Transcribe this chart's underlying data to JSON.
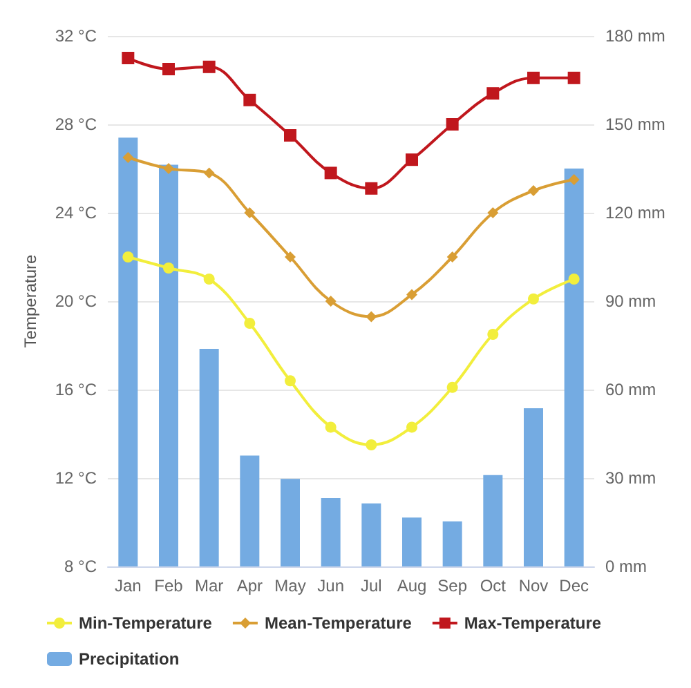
{
  "chart_data": {
    "type": "line",
    "ylabel": "Temperature",
    "categories": [
      "Jan",
      "Feb",
      "Mar",
      "Apr",
      "May",
      "Jun",
      "Jul",
      "Aug",
      "Sep",
      "Oct",
      "Nov",
      "Dec"
    ],
    "ylim": [
      8,
      32
    ],
    "yticks": [
      {
        "value": 8,
        "label": "8 °C"
      },
      {
        "value": 12,
        "label": "12 °C"
      },
      {
        "value": 16,
        "label": "16 °C"
      },
      {
        "value": 20,
        "label": "20 °C"
      },
      {
        "value": 24,
        "label": "24 °C"
      },
      {
        "value": 28,
        "label": "28 °C"
      },
      {
        "value": 32,
        "label": "32 °C"
      }
    ],
    "y2lim": [
      0,
      180
    ],
    "y2ticks": [
      {
        "value": 0,
        "label": "0 mm"
      },
      {
        "value": 30,
        "label": "30 mm"
      },
      {
        "value": 60,
        "label": "60 mm"
      },
      {
        "value": 90,
        "label": "90 mm"
      },
      {
        "value": 120,
        "label": "120 mm"
      },
      {
        "value": 150,
        "label": "150 mm"
      },
      {
        "value": 180,
        "label": "180 mm"
      }
    ],
    "series": [
      {
        "name": "Precipitation",
        "type": "bar",
        "axis": "y2",
        "color": "#74abe2",
        "values": [
          145.5,
          136.3,
          73.8,
          37.6,
          29.7,
          23.2,
          21.4,
          16.6,
          15.3,
          31.0,
          53.7,
          135.0
        ]
      },
      {
        "name": "Min-Temperature",
        "marker": "circle",
        "color": "#f2ee3c",
        "values": [
          22.0,
          21.5,
          21.0,
          19.0,
          16.4,
          14.3,
          13.5,
          14.3,
          16.1,
          18.5,
          20.1,
          21.0
        ]
      },
      {
        "name": "Mean-Temperature",
        "marker": "diamond",
        "color": "#d99e34",
        "values": [
          26.5,
          26.0,
          25.8,
          24.0,
          22.0,
          20.0,
          19.3,
          20.3,
          22.0,
          24.0,
          25.0,
          25.5
        ]
      },
      {
        "name": "Max-Temperature",
        "marker": "square",
        "color": "#c0171d",
        "values": [
          31.0,
          30.5,
          30.6,
          29.1,
          27.5,
          25.8,
          25.1,
          26.4,
          28.0,
          29.4,
          30.1,
          30.1
        ]
      }
    ],
    "grid": "y",
    "legend": "bottom"
  }
}
